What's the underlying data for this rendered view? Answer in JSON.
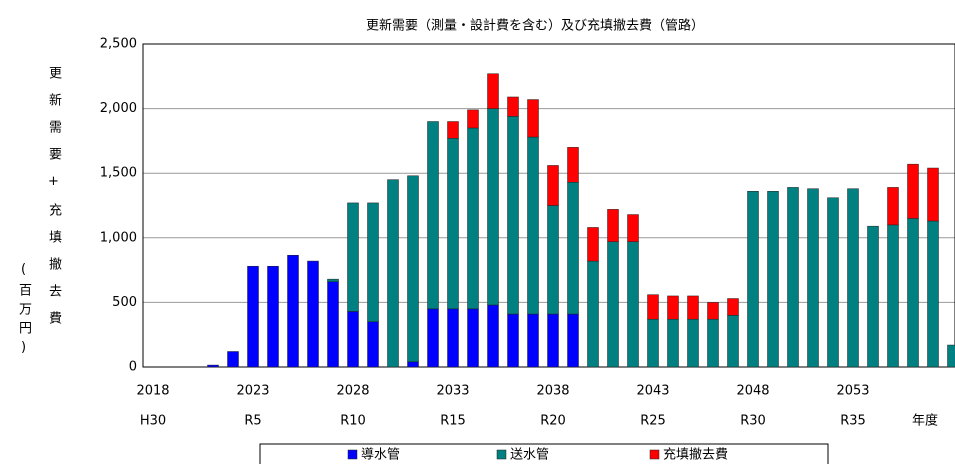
{
  "chart_data": {
    "type": "bar",
    "stacked": true,
    "title": "更新需要（測量・設計費を含む）及び充填撤去費（管路）",
    "ylabel": "更新需要+充填撤去費",
    "ylabel_unit": "(百万円)",
    "x_unit": "年度",
    "categories": [
      "2018",
      null,
      null,
      null,
      null,
      "2023",
      null,
      null,
      null,
      null,
      "2028",
      null,
      null,
      null,
      null,
      "2033",
      null,
      null,
      null,
      null,
      "2038",
      null,
      null,
      null,
      null,
      "2043",
      null,
      null,
      null,
      null,
      "2048",
      null,
      null,
      null,
      null,
      "2053",
      null,
      null,
      null,
      null,
      null
    ],
    "era_labels": [
      "H30",
      null,
      null,
      null,
      null,
      "R5",
      null,
      null,
      null,
      null,
      "R10",
      null,
      null,
      null,
      null,
      "R15",
      null,
      null,
      null,
      null,
      "R20",
      null,
      null,
      null,
      null,
      "R25",
      null,
      null,
      null,
      null,
      "R30",
      null,
      null,
      null,
      null,
      "R35",
      null,
      null,
      null,
      null,
      null
    ],
    "series": [
      {
        "name": "導水管",
        "color": "#0000ff",
        "values": [
          0,
          0,
          0,
          15,
          120,
          780,
          780,
          865,
          820,
          660,
          430,
          350,
          0,
          40,
          450,
          450,
          450,
          480,
          410,
          410,
          410,
          410,
          0,
          0,
          0,
          0,
          0,
          0,
          0,
          0,
          0,
          0,
          0,
          0,
          0,
          0,
          0,
          0,
          0,
          0,
          0
        ]
      },
      {
        "name": "送水管",
        "color": "#008080",
        "values": [
          0,
          0,
          0,
          0,
          0,
          0,
          0,
          0,
          0,
          20,
          840,
          920,
          1450,
          1440,
          1450,
          1320,
          1400,
          1520,
          1530,
          1370,
          840,
          1020,
          820,
          970,
          970,
          370,
          370,
          370,
          370,
          400,
          1360,
          1360,
          1390,
          1380,
          1310,
          1380,
          1090,
          1100,
          1150,
          1130,
          170
        ]
      },
      {
        "name": "充填撤去費",
        "color": "#ff0000",
        "values": [
          0,
          0,
          0,
          0,
          0,
          0,
          0,
          0,
          0,
          0,
          0,
          0,
          0,
          0,
          0,
          130,
          140,
          270,
          150,
          290,
          310,
          270,
          260,
          250,
          210,
          190,
          180,
          180,
          130,
          130,
          0,
          0,
          0,
          0,
          0,
          0,
          0,
          290,
          420,
          410,
          0
        ]
      }
    ],
    "ylim": [
      0,
      2500
    ],
    "yticks": [
      0,
      500,
      {
        "value": 1000,
        "label": "1,000"
      },
      {
        "value": 1500,
        "label": "1,500"
      },
      {
        "value": 2000,
        "label": "2,000"
      },
      {
        "value": 2500,
        "label": "2,500"
      }
    ],
    "grid": true,
    "legend": "bottom"
  }
}
